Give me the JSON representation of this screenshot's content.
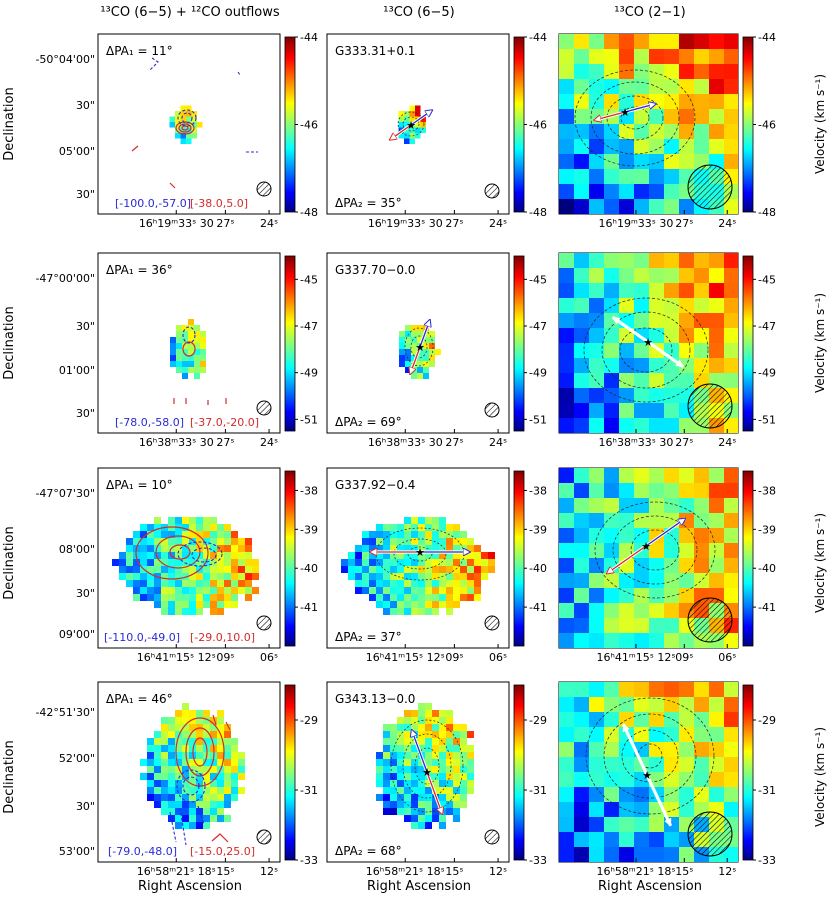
{
  "chart_data": {
    "type": "heatmap",
    "title": "Velocity maps of 13CO emission with outflow axes",
    "xlabel": "Right Ascension",
    "ylabel": "Declination",
    "cbar_label": "Velocity (km s⁻¹)",
    "column_titles": [
      "¹³CO (6−5) + ¹²CO outflows",
      "¹³CO (6−5)",
      "¹³CO (2−1)"
    ],
    "rows": [
      {
        "source": "G333.31+0.1",
        "pa1": "ΔPA₁ = 11°",
        "pa2": "ΔPA₂ = 35°",
        "blue_range": "[-100.0,-57.0]",
        "red_range": "[-38.0,5.0]",
        "vmin": -48,
        "vmax": -44,
        "cbar_ticks": [
          "-44",
          "-46",
          "-48"
        ],
        "cbar_tick_values": [
          -44,
          -46,
          -48
        ],
        "dec_ticks": [
          "-50°04'00\"",
          "30\"",
          "05'00\"",
          "30\""
        ],
        "ra_ticks": [
          "16ʰ19ᵐ33ˢ 30",
          "27ˢ",
          "24ˢ"
        ],
        "velocity_field": {
          "center": -46.0,
          "gradient": 1.2,
          "pa_deg": 35
        },
        "outflow_pa_deg": 55,
        "co21_axis_pa_deg": 75
      },
      {
        "source": "G337.70−0.0",
        "pa1": "ΔPA₁ = 36°",
        "pa2": "ΔPA₂ = 69°",
        "blue_range": "[-78.0,-58.0]",
        "red_range": "[-37.0,-20.0]",
        "vmin": -51.5,
        "vmax": -44,
        "cbar_ticks": [
          "-45",
          "-47",
          "-49",
          "-51"
        ],
        "cbar_tick_values": [
          -45,
          -47,
          -49,
          -51
        ],
        "dec_ticks": [
          "-47°00'00\"",
          "30\"",
          "01'00\"",
          "30\""
        ],
        "ra_ticks": [
          "16ʰ38ᵐ33ˢ 30",
          "27ˢ",
          "24ˢ"
        ],
        "velocity_field": {
          "center": -48.0,
          "gradient": 2.0,
          "pa_deg": 69
        },
        "outflow_pa_deg": 20,
        "co21_axis_pa_deg": -55
      },
      {
        "source": "G337.92−0.4",
        "pa1": "ΔPA₁ = 10°",
        "pa2": "ΔPA₂ = 37°",
        "blue_range": "[-110.0,-49.0]",
        "red_range": "[-29.0,10.0]",
        "vmin": -42,
        "vmax": -37.5,
        "cbar_ticks": [
          "-38",
          "-39",
          "-40",
          "-41"
        ],
        "cbar_tick_values": [
          -38,
          -39,
          -40,
          -41
        ],
        "dec_ticks": [
          "-47°07'30\"",
          "08'00\"",
          "30\"",
          "09'00\""
        ],
        "ra_ticks": [
          "16ʰ41ᵐ15ˢ 12ˢ",
          "09ˢ",
          "06ˢ"
        ],
        "velocity_field": {
          "center": -39.8,
          "gradient": 1.0,
          "pa_deg": 90
        },
        "outflow_pa_deg": 90,
        "co21_axis_pa_deg": 55
      },
      {
        "source": "G343.13−0.0",
        "pa1": "ΔPA₁ = 46°",
        "pa2": "ΔPA₂ = 68°",
        "blue_range": "[-79.0,-48.0]",
        "red_range": "[-15.0,25.0]",
        "vmin": -33,
        "vmax": -28,
        "cbar_ticks": [
          "-29",
          "-31",
          "-33"
        ],
        "cbar_tick_values": [
          -29,
          -31,
          -33
        ],
        "dec_ticks": [
          "-42°51'30\"",
          "52'00\"",
          "30\"",
          "53'00\""
        ],
        "ra_ticks": [
          "16ʰ58ᵐ21ˢ 18ˢ",
          "15ˢ",
          "12ˢ"
        ],
        "velocity_field": {
          "center": -30.8,
          "gradient": 1.1,
          "pa_deg": 45
        },
        "outflow_pa_deg": -20,
        "co21_axis_pa_deg": 155
      }
    ]
  }
}
